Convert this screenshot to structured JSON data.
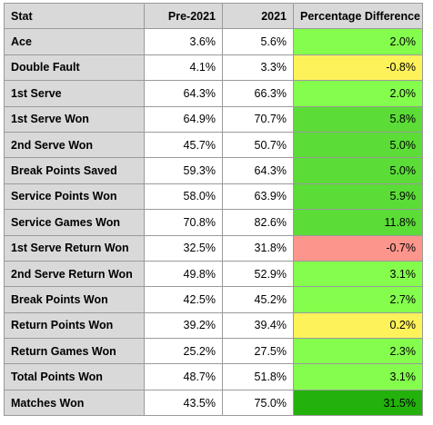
{
  "table": {
    "headers": [
      "Stat",
      "Pre-2021",
      "2021",
      "Percentage Difference"
    ],
    "rows": [
      {
        "stat": "Ace",
        "pre": "3.6%",
        "cur": "5.6%",
        "diff": "2.0%",
        "color": "#84fd4d"
      },
      {
        "stat": "Double Fault",
        "pre": "4.1%",
        "cur": "3.3%",
        "diff": "-0.8%",
        "color": "#fdf25a"
      },
      {
        "stat": "1st Serve",
        "pre": "64.3%",
        "cur": "66.3%",
        "diff": "2.0%",
        "color": "#84fd4d"
      },
      {
        "stat": "1st Serve Won",
        "pre": "64.9%",
        "cur": "70.7%",
        "diff": "5.8%",
        "color": "#5bdc37"
      },
      {
        "stat": "2nd Serve Won",
        "pre": "45.7%",
        "cur": "50.7%",
        "diff": "5.0%",
        "color": "#5bdc37"
      },
      {
        "stat": "Break Points Saved",
        "pre": "59.3%",
        "cur": "64.3%",
        "diff": "5.0%",
        "color": "#5bdc37"
      },
      {
        "stat": "Service Points Won",
        "pre": "58.0%",
        "cur": "63.9%",
        "diff": "5.9%",
        "color": "#5bdc37"
      },
      {
        "stat": "Service Games Won",
        "pre": "70.8%",
        "cur": "82.6%",
        "diff": "11.8%",
        "color": "#5bdc37"
      },
      {
        "stat": "1st Serve Return Won",
        "pre": "32.5%",
        "cur": "31.8%",
        "diff": "-0.7%",
        "color": "#fc968c"
      },
      {
        "stat": "2nd Serve Return Won",
        "pre": "49.8%",
        "cur": "52.9%",
        "diff": "3.1%",
        "color": "#84fd4d"
      },
      {
        "stat": "Break Points Won",
        "pre": "42.5%",
        "cur": "45.2%",
        "diff": "2.7%",
        "color": "#84fd4d"
      },
      {
        "stat": "Return Points Won",
        "pre": "39.2%",
        "cur": "39.4%",
        "diff": "0.2%",
        "color": "#fdf25a"
      },
      {
        "stat": "Return Games Won",
        "pre": "25.2%",
        "cur": "27.5%",
        "diff": "2.3%",
        "color": "#84fd4d"
      },
      {
        "stat": "Total Points Won",
        "pre": "48.7%",
        "cur": "51.8%",
        "diff": "3.1%",
        "color": "#84fd4d"
      },
      {
        "stat": "Matches Won",
        "pre": "43.5%",
        "cur": "75.0%",
        "diff": "31.5%",
        "color": "#22b20b"
      }
    ]
  }
}
